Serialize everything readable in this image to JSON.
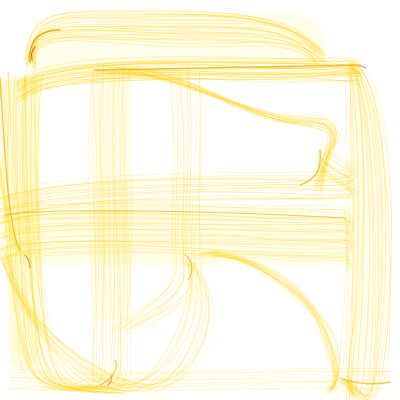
{
  "image": {
    "type": "generative-flame-fractal",
    "background_color": "#ffffff",
    "palette": {
      "primary": "#ffd200",
      "highlight": "#ffe94d",
      "edge": "#e6a800",
      "deep": "#c07000",
      "crimson_accent": "#b02000"
    }
  }
}
